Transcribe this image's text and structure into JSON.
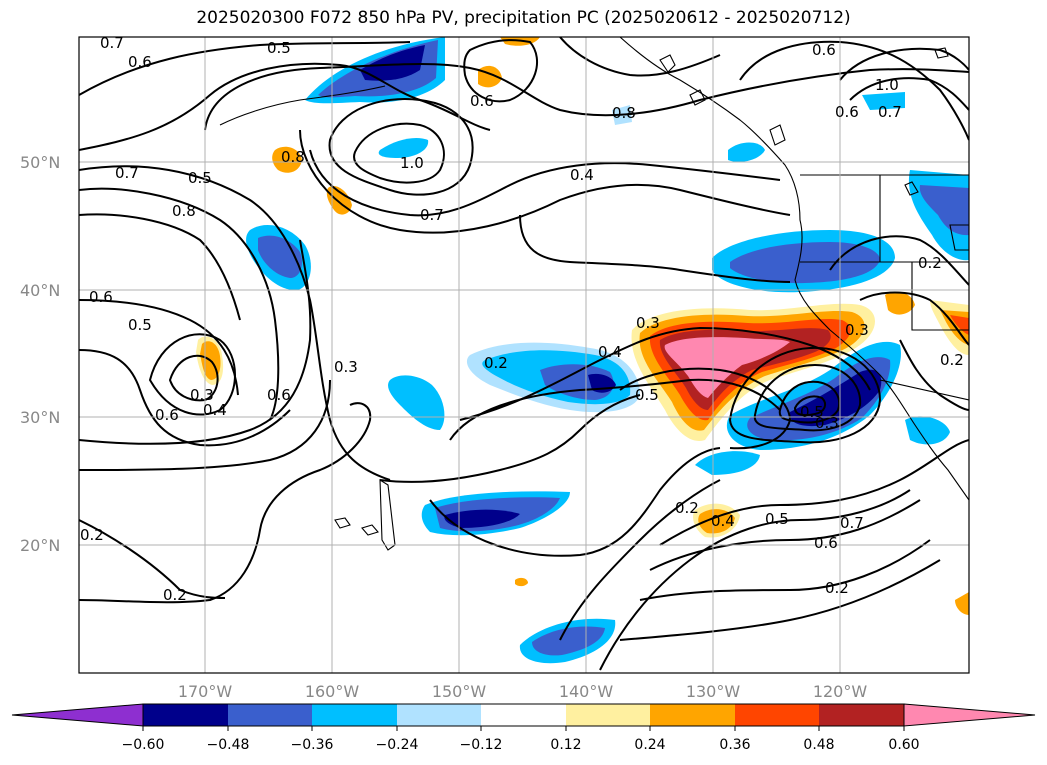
{
  "title": "2025020300 F072 850 hPa PV, precipitation PC (2025020612 - 2025020712)",
  "lat_labels": [
    "50°N",
    "40°N",
    "30°N",
    "20°N"
  ],
  "lon_labels": [
    "170°W",
    "160°W",
    "150°W",
    "140°W",
    "130°W",
    "120°W"
  ],
  "colorbar": {
    "ticks": [
      "−0.60",
      "−0.48",
      "−0.36",
      "−0.24",
      "−0.12",
      "0.12",
      "0.24",
      "0.36",
      "0.48",
      "0.60"
    ],
    "colors": [
      "#8e2fd0",
      "#00008b",
      "#3a5fcd",
      "#00bfff",
      "#b0e2ff",
      "#ffffff",
      "#fff0a0",
      "#ffa500",
      "#ff4500",
      "#b22222",
      "#ff88b0"
    ]
  },
  "shade_colors": {
    "dark_blue": "#00008b",
    "blue": "#3a5fcd",
    "sky": "#00bfff",
    "light_blue": "#b0e2ff",
    "yellow": "#fff0a0",
    "orange": "#ffa500",
    "red_orange": "#ff4500",
    "dark_red": "#b22222",
    "pink": "#ff88b0"
  },
  "contour_labels": [
    "0.7",
    "0.5",
    "0.6",
    "0.6",
    "0.8",
    "0.6",
    "1.0",
    "0.6",
    "0.7",
    "0.5",
    "0.7",
    "0.8",
    "0.8",
    "1.0",
    "0.4",
    "0.7",
    "0.6",
    "0.5",
    "0.3",
    "0.4",
    "0.2",
    "0.6",
    "0.6",
    "0.3",
    "0.4",
    "0.3",
    "0.5",
    "0.3",
    "0.5",
    "0.3",
    "0.2",
    "0.2",
    "0.4",
    "0.5",
    "0.7",
    "0.6",
    "0.2",
    "0.2",
    "0.2",
    "0.2"
  ]
}
